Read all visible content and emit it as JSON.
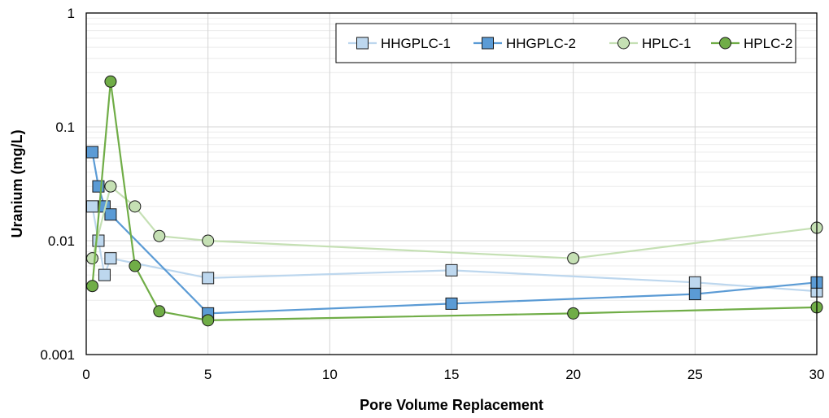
{
  "chart_data": {
    "type": "line",
    "xlabel": "Pore Volume Replacement",
    "ylabel": "Uranium (mg/L)",
    "xlim": [
      0,
      30
    ],
    "ylim": [
      0.001,
      1
    ],
    "yscale": "log",
    "x_ticks": [
      0,
      5,
      10,
      15,
      20,
      25,
      30
    ],
    "x_tick_labels": [
      "0",
      "5",
      "10",
      "15",
      "20",
      "25",
      "30"
    ],
    "y_ticks": [
      0.001,
      0.01,
      0.1,
      1
    ],
    "y_tick_labels": [
      "0.001",
      "0.01",
      "0.1",
      "1"
    ],
    "grid": true,
    "legend_position": "top-right",
    "series": [
      {
        "name": "HHGPLC-1",
        "marker": "square",
        "color": "#bdd7ee",
        "line_color": "#bdd7ee",
        "points": [
          [
            0.25,
            0.02
          ],
          [
            0.5,
            0.01
          ],
          [
            0.75,
            0.005
          ],
          [
            1,
            0.007
          ],
          [
            5,
            0.0047
          ],
          [
            15,
            0.0055
          ],
          [
            25,
            0.0043
          ],
          [
            30,
            0.0036
          ]
        ]
      },
      {
        "name": "HHGPLC-2",
        "marker": "square",
        "color": "#5b9bd5",
        "line_color": "#5b9bd5",
        "points": [
          [
            0.25,
            0.06
          ],
          [
            0.5,
            0.03
          ],
          [
            0.75,
            0.02
          ],
          [
            1,
            0.017
          ],
          [
            5,
            0.0023
          ],
          [
            15,
            0.0028
          ],
          [
            25,
            0.0034
          ],
          [
            30,
            0.0043
          ]
        ]
      },
      {
        "name": "HPLC-1",
        "marker": "circle",
        "color": "#c5e0b4",
        "line_color": "#c5e0b4",
        "points": [
          [
            0.25,
            0.007
          ],
          [
            1,
            0.03
          ],
          [
            2,
            0.02
          ],
          [
            3,
            0.011
          ],
          [
            5,
            0.01
          ],
          [
            20,
            0.007
          ],
          [
            30,
            0.013
          ]
        ]
      },
      {
        "name": "HPLC-2",
        "marker": "circle",
        "color": "#70ad47",
        "line_color": "#70ad47",
        "points": [
          [
            0.25,
            0.004
          ],
          [
            1,
            0.25
          ],
          [
            2,
            0.006
          ],
          [
            3,
            0.0024
          ],
          [
            5,
            0.002
          ],
          [
            20,
            0.0023
          ],
          [
            30,
            0.0026
          ]
        ]
      }
    ]
  }
}
